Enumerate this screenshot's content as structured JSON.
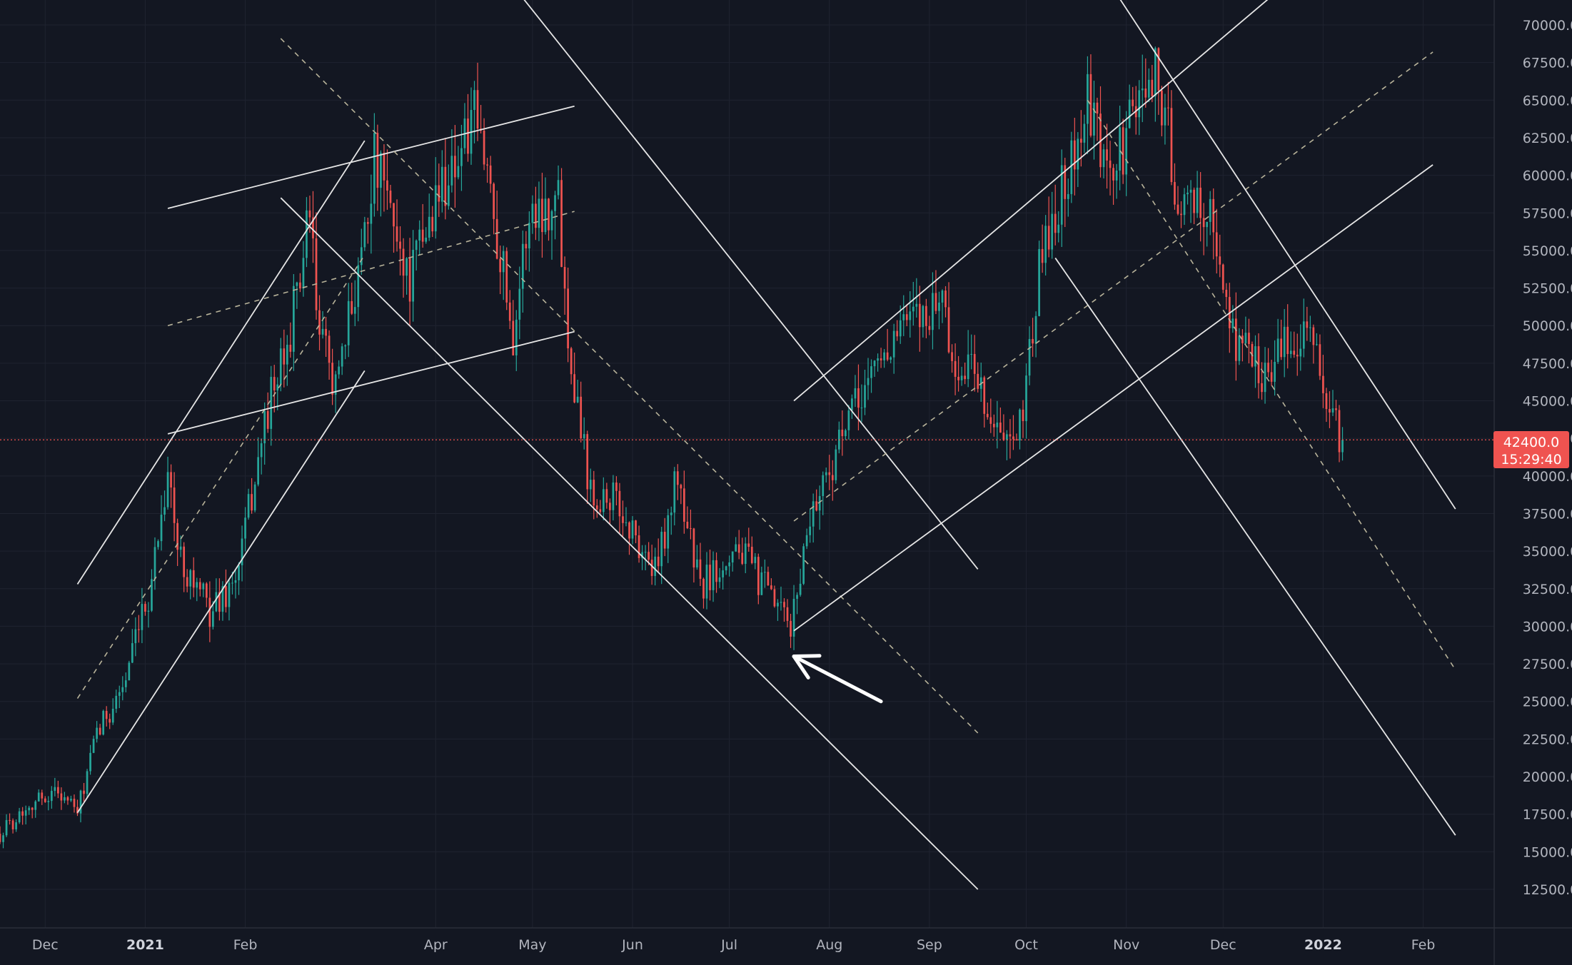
{
  "colors": {
    "background": "#131722",
    "grid": "#1f2330",
    "up": "#26a69a",
    "down": "#ef5350",
    "drawing": "#e6e6e6",
    "dashed": "#b8b39a",
    "axis_text": "#b2b5be",
    "price_line": "#ef5350"
  },
  "chart_data": {
    "type": "candlestick",
    "title": "",
    "xlabel": "",
    "ylabel": "",
    "ylim": [
      10000,
      72000
    ],
    "y_ticks": [
      "70000.0",
      "67500.0",
      "65000.0",
      "62500.0",
      "60000.0",
      "57500.0",
      "55000.0",
      "52500.0",
      "50000.0",
      "47500.0",
      "45000.0",
      "42500.0",
      "40000.0",
      "37500.0",
      "35000.0",
      "32500.0",
      "30000.0",
      "27500.0",
      "25000.0",
      "22500.0",
      "20000.0",
      "17500.0",
      "15000.0",
      "12500.0"
    ],
    "x_ticks": [
      {
        "label": "Dec",
        "date": "2020-12-01",
        "bold": false
      },
      {
        "label": "2021",
        "date": "2021-01-01",
        "bold": true
      },
      {
        "label": "Feb",
        "date": "2021-02-01",
        "bold": false
      },
      {
        "label": "Apr",
        "date": "2021-04-01",
        "bold": false
      },
      {
        "label": "May",
        "date": "2021-05-01",
        "bold": false
      },
      {
        "label": "Jun",
        "date": "2021-06-01",
        "bold": false
      },
      {
        "label": "Jul",
        "date": "2021-07-01",
        "bold": false
      },
      {
        "label": "Aug",
        "date": "2021-08-01",
        "bold": false
      },
      {
        "label": "Sep",
        "date": "2021-09-01",
        "bold": false
      },
      {
        "label": "Oct",
        "date": "2021-10-01",
        "bold": false
      },
      {
        "label": "Nov",
        "date": "2021-11-01",
        "bold": false
      },
      {
        "label": "Dec",
        "date": "2021-12-01",
        "bold": false
      },
      {
        "label": "2022",
        "date": "2022-01-01",
        "bold": true
      },
      {
        "label": "Feb",
        "date": "2022-02-01",
        "bold": false
      }
    ],
    "x_range": [
      "2020-11-17",
      "2022-02-23"
    ],
    "current_price": "42400.0",
    "countdown": "15:29:40",
    "price_anchors": [
      [
        "2020-11-17",
        16200
      ],
      [
        "2020-11-26",
        18200
      ],
      [
        "2020-12-05",
        19100
      ],
      [
        "2020-12-11",
        17600
      ],
      [
        "2020-12-17",
        22800
      ],
      [
        "2020-12-26",
        26500
      ],
      [
        "2021-01-02",
        32000
      ],
      [
        "2021-01-08",
        40500
      ],
      [
        "2021-01-11",
        35000
      ],
      [
        "2021-01-21",
        31000
      ],
      [
        "2021-01-29",
        33000
      ],
      [
        "2021-02-08",
        44500
      ],
      [
        "2021-02-13",
        47500
      ],
      [
        "2021-02-21",
        57000
      ],
      [
        "2021-02-24",
        49000
      ],
      [
        "2021-03-02",
        46000
      ],
      [
        "2021-03-13",
        61000
      ],
      [
        "2021-03-18",
        57500
      ],
      [
        "2021-03-24",
        53000
      ],
      [
        "2021-04-02",
        59000
      ],
      [
        "2021-04-13",
        63500
      ],
      [
        "2021-04-17",
        60500
      ],
      [
        "2021-04-25",
        49500
      ],
      [
        "2021-04-30",
        57500
      ],
      [
        "2021-05-09",
        58500
      ],
      [
        "2021-05-12",
        49500
      ],
      [
        "2021-05-19",
        39000
      ],
      [
        "2021-05-26",
        38500
      ],
      [
        "2021-06-08",
        33500
      ],
      [
        "2021-06-15",
        40000
      ],
      [
        "2021-06-22",
        32500
      ],
      [
        "2021-07-03",
        35500
      ],
      [
        "2021-07-20",
        29800
      ],
      [
        "2021-07-26",
        37500
      ],
      [
        "2021-08-14",
        47000
      ],
      [
        "2021-08-22",
        49500
      ],
      [
        "2021-09-06",
        52000
      ],
      [
        "2021-09-08",
        46500
      ],
      [
        "2021-09-15",
        47500
      ],
      [
        "2021-09-21",
        43000
      ],
      [
        "2021-09-28",
        41500
      ],
      [
        "2021-10-06",
        55000
      ],
      [
        "2021-10-15",
        61000
      ],
      [
        "2021-10-20",
        64500
      ],
      [
        "2021-10-27",
        59500
      ],
      [
        "2021-11-09",
        67500
      ],
      [
        "2021-11-13",
        64000
      ],
      [
        "2021-11-18",
        57000
      ],
      [
        "2021-11-25",
        58500
      ],
      [
        "2021-11-28",
        56000
      ],
      [
        "2021-12-04",
        49500
      ],
      [
        "2021-12-13",
        47000
      ],
      [
        "2021-12-21",
        48500
      ],
      [
        "2021-12-27",
        50800
      ],
      [
        "2021-12-31",
        46500
      ],
      [
        "2022-01-05",
        43000
      ],
      [
        "2022-01-07",
        42400
      ]
    ],
    "drawings": [
      {
        "type": "line",
        "style": "solid",
        "points": [
          [
            "2020-12-11",
            17600
          ],
          [
            "2021-03-10",
            47000
          ]
        ]
      },
      {
        "type": "line",
        "style": "solid",
        "points": [
          [
            "2020-12-11",
            32800
          ],
          [
            "2021-03-10",
            62300
          ]
        ]
      },
      {
        "type": "line",
        "style": "dashed",
        "points": [
          [
            "2020-12-11",
            25200
          ],
          [
            "2021-03-10",
            54700
          ]
        ]
      },
      {
        "type": "line",
        "style": "solid",
        "points": [
          [
            "2021-01-08",
            42800
          ],
          [
            "2021-05-14",
            49600
          ]
        ]
      },
      {
        "type": "line",
        "style": "solid",
        "points": [
          [
            "2021-01-08",
            57800
          ],
          [
            "2021-05-14",
            64600
          ]
        ]
      },
      {
        "type": "line",
        "style": "dashed",
        "points": [
          [
            "2021-01-08",
            50000
          ],
          [
            "2021-05-14",
            57600
          ]
        ]
      },
      {
        "type": "line",
        "style": "solid",
        "points": [
          [
            "2021-02-12",
            58500
          ],
          [
            "2021-09-16",
            12500
          ]
        ]
      },
      {
        "type": "line",
        "style": "solid",
        "points": [
          [
            "2021-03-10",
            85000
          ],
          [
            "2021-09-16",
            33800
          ]
        ]
      },
      {
        "type": "line",
        "style": "dashed",
        "points": [
          [
            "2021-02-12",
            69100
          ],
          [
            "2021-09-16",
            22900
          ]
        ]
      },
      {
        "type": "line",
        "style": "solid",
        "points": [
          [
            "2021-07-21",
            29700
          ],
          [
            "2022-02-04",
            60700
          ]
        ]
      },
      {
        "type": "line",
        "style": "solid",
        "points": [
          [
            "2021-07-21",
            45000
          ],
          [
            "2022-02-04",
            81000
          ]
        ]
      },
      {
        "type": "line",
        "style": "dashed",
        "points": [
          [
            "2021-07-21",
            37000
          ],
          [
            "2022-02-04",
            68200
          ]
        ]
      },
      {
        "type": "line",
        "style": "solid",
        "points": [
          [
            "2021-10-10",
            54500
          ],
          [
            "2022-02-11",
            16100
          ]
        ]
      },
      {
        "type": "line",
        "style": "solid",
        "points": [
          [
            "2021-10-20",
            75000
          ],
          [
            "2022-02-11",
            37800
          ]
        ]
      },
      {
        "type": "line",
        "style": "dashed",
        "points": [
          [
            "2021-10-20",
            65000
          ],
          [
            "2022-02-11",
            27100
          ]
        ]
      }
    ],
    "arrow": {
      "from": [
        "2021-08-17",
        25000
      ],
      "to": [
        "2021-07-21",
        28000
      ]
    }
  }
}
